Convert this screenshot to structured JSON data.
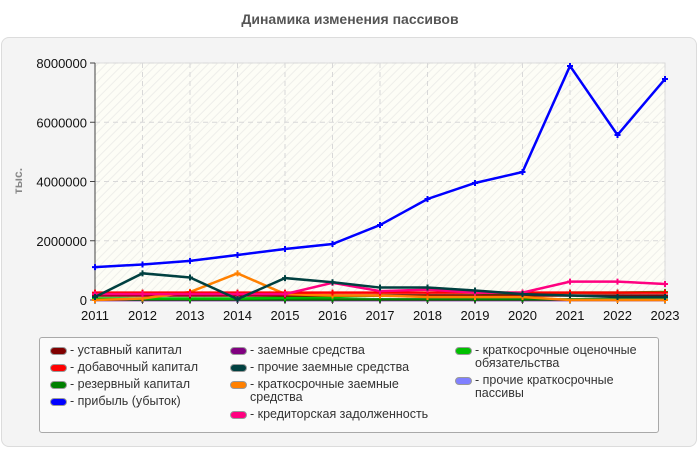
{
  "title": "Динамика изменения пассивов",
  "chart_data": {
    "type": "line",
    "title": "Динамика изменения пассивов",
    "xlabel": "",
    "ylabel": "тыс.",
    "ylim": [
      0,
      8000000
    ],
    "yticks": [
      "0",
      "2000000",
      "4000000",
      "6000000",
      "8000000"
    ],
    "grid": true,
    "legend_position": "bottom",
    "x": [
      "2011",
      "2012",
      "2013",
      "2014",
      "2015",
      "2016",
      "2017",
      "2018",
      "2019",
      "2020",
      "2021",
      "2022",
      "2023"
    ],
    "series": [
      {
        "name": "уставный капитал",
        "color": "#800000",
        "values": [
          150000,
          150000,
          150000,
          150000,
          150000,
          150000,
          150000,
          150000,
          150000,
          150000,
          150000,
          150000,
          150000
        ]
      },
      {
        "name": "добавочный капитал",
        "color": "#ff0000",
        "values": [
          250000,
          250000,
          250000,
          250000,
          250000,
          250000,
          250000,
          250000,
          250000,
          250000,
          250000,
          250000,
          250000
        ]
      },
      {
        "name": "резервный капитал",
        "color": "#008000",
        "values": [
          20000,
          20000,
          20000,
          20000,
          20000,
          20000,
          20000,
          20000,
          20000,
          20000,
          20000,
          20000,
          20000
        ]
      },
      {
        "name": "прибыль (убыток)",
        "color": "#0000ff",
        "values": [
          1110000,
          1200000,
          1320000,
          1520000,
          1720000,
          1890000,
          2530000,
          3410000,
          3950000,
          4320000,
          7900000,
          5570000,
          7460000
        ]
      },
      {
        "name": "заемные средства",
        "color": "#800080",
        "values": [
          0,
          0,
          0,
          0,
          0,
          0,
          0,
          0,
          0,
          0,
          0,
          0,
          0
        ]
      },
      {
        "name": "прочие заемные средства",
        "color": "#004040",
        "values": [
          100000,
          900000,
          760000,
          30000,
          740000,
          600000,
          420000,
          420000,
          320000,
          200000,
          150000,
          100000,
          100000
        ]
      },
      {
        "name": "краткосрочные заемные средства",
        "color": "#ff8000",
        "values": [
          0,
          50000,
          270000,
          900000,
          200000,
          150000,
          150000,
          100000,
          100000,
          100000,
          0,
          0,
          0
        ]
      },
      {
        "name": "кредиторская задолженность",
        "color": "#ff0080",
        "values": [
          200000,
          200000,
          200000,
          200000,
          200000,
          580000,
          300000,
          350000,
          250000,
          250000,
          620000,
          620000,
          540000
        ]
      },
      {
        "name": "краткосрочные оценочные обязательства",
        "color": "#00c000",
        "values": [
          50000,
          50000,
          50000,
          50000,
          80000,
          100000,
          150000,
          150000,
          150000,
          200000,
          250000,
          250000,
          270000
        ]
      },
      {
        "name": "прочие краткосрочные пассивы",
        "color": "#8080ff",
        "values": [
          0,
          0,
          0,
          0,
          0,
          0,
          0,
          0,
          0,
          0,
          0,
          0,
          0
        ]
      }
    ]
  },
  "legend": {
    "items": [
      {
        "label": "- уставный капитал",
        "color": "#800000"
      },
      {
        "label": "- добавочный капитал",
        "color": "#ff0000"
      },
      {
        "label": "- резервный капитал",
        "color": "#008000"
      },
      {
        "label": "- прибыль (убыток)",
        "color": "#0000ff"
      },
      {
        "label": "- заемные средства",
        "color": "#800080"
      },
      {
        "label": "- прочие заемные средства",
        "color": "#004040"
      },
      {
        "label": "- краткосрочные заемные средства",
        "color": "#ff8000"
      },
      {
        "label": "- кредиторская задолженность",
        "color": "#ff0080"
      },
      {
        "label": "- краткосрочные оценочные обязательства",
        "color": "#00c000"
      },
      {
        "label": "- прочие краткосрочные пассивы",
        "color": "#8080ff"
      }
    ]
  }
}
